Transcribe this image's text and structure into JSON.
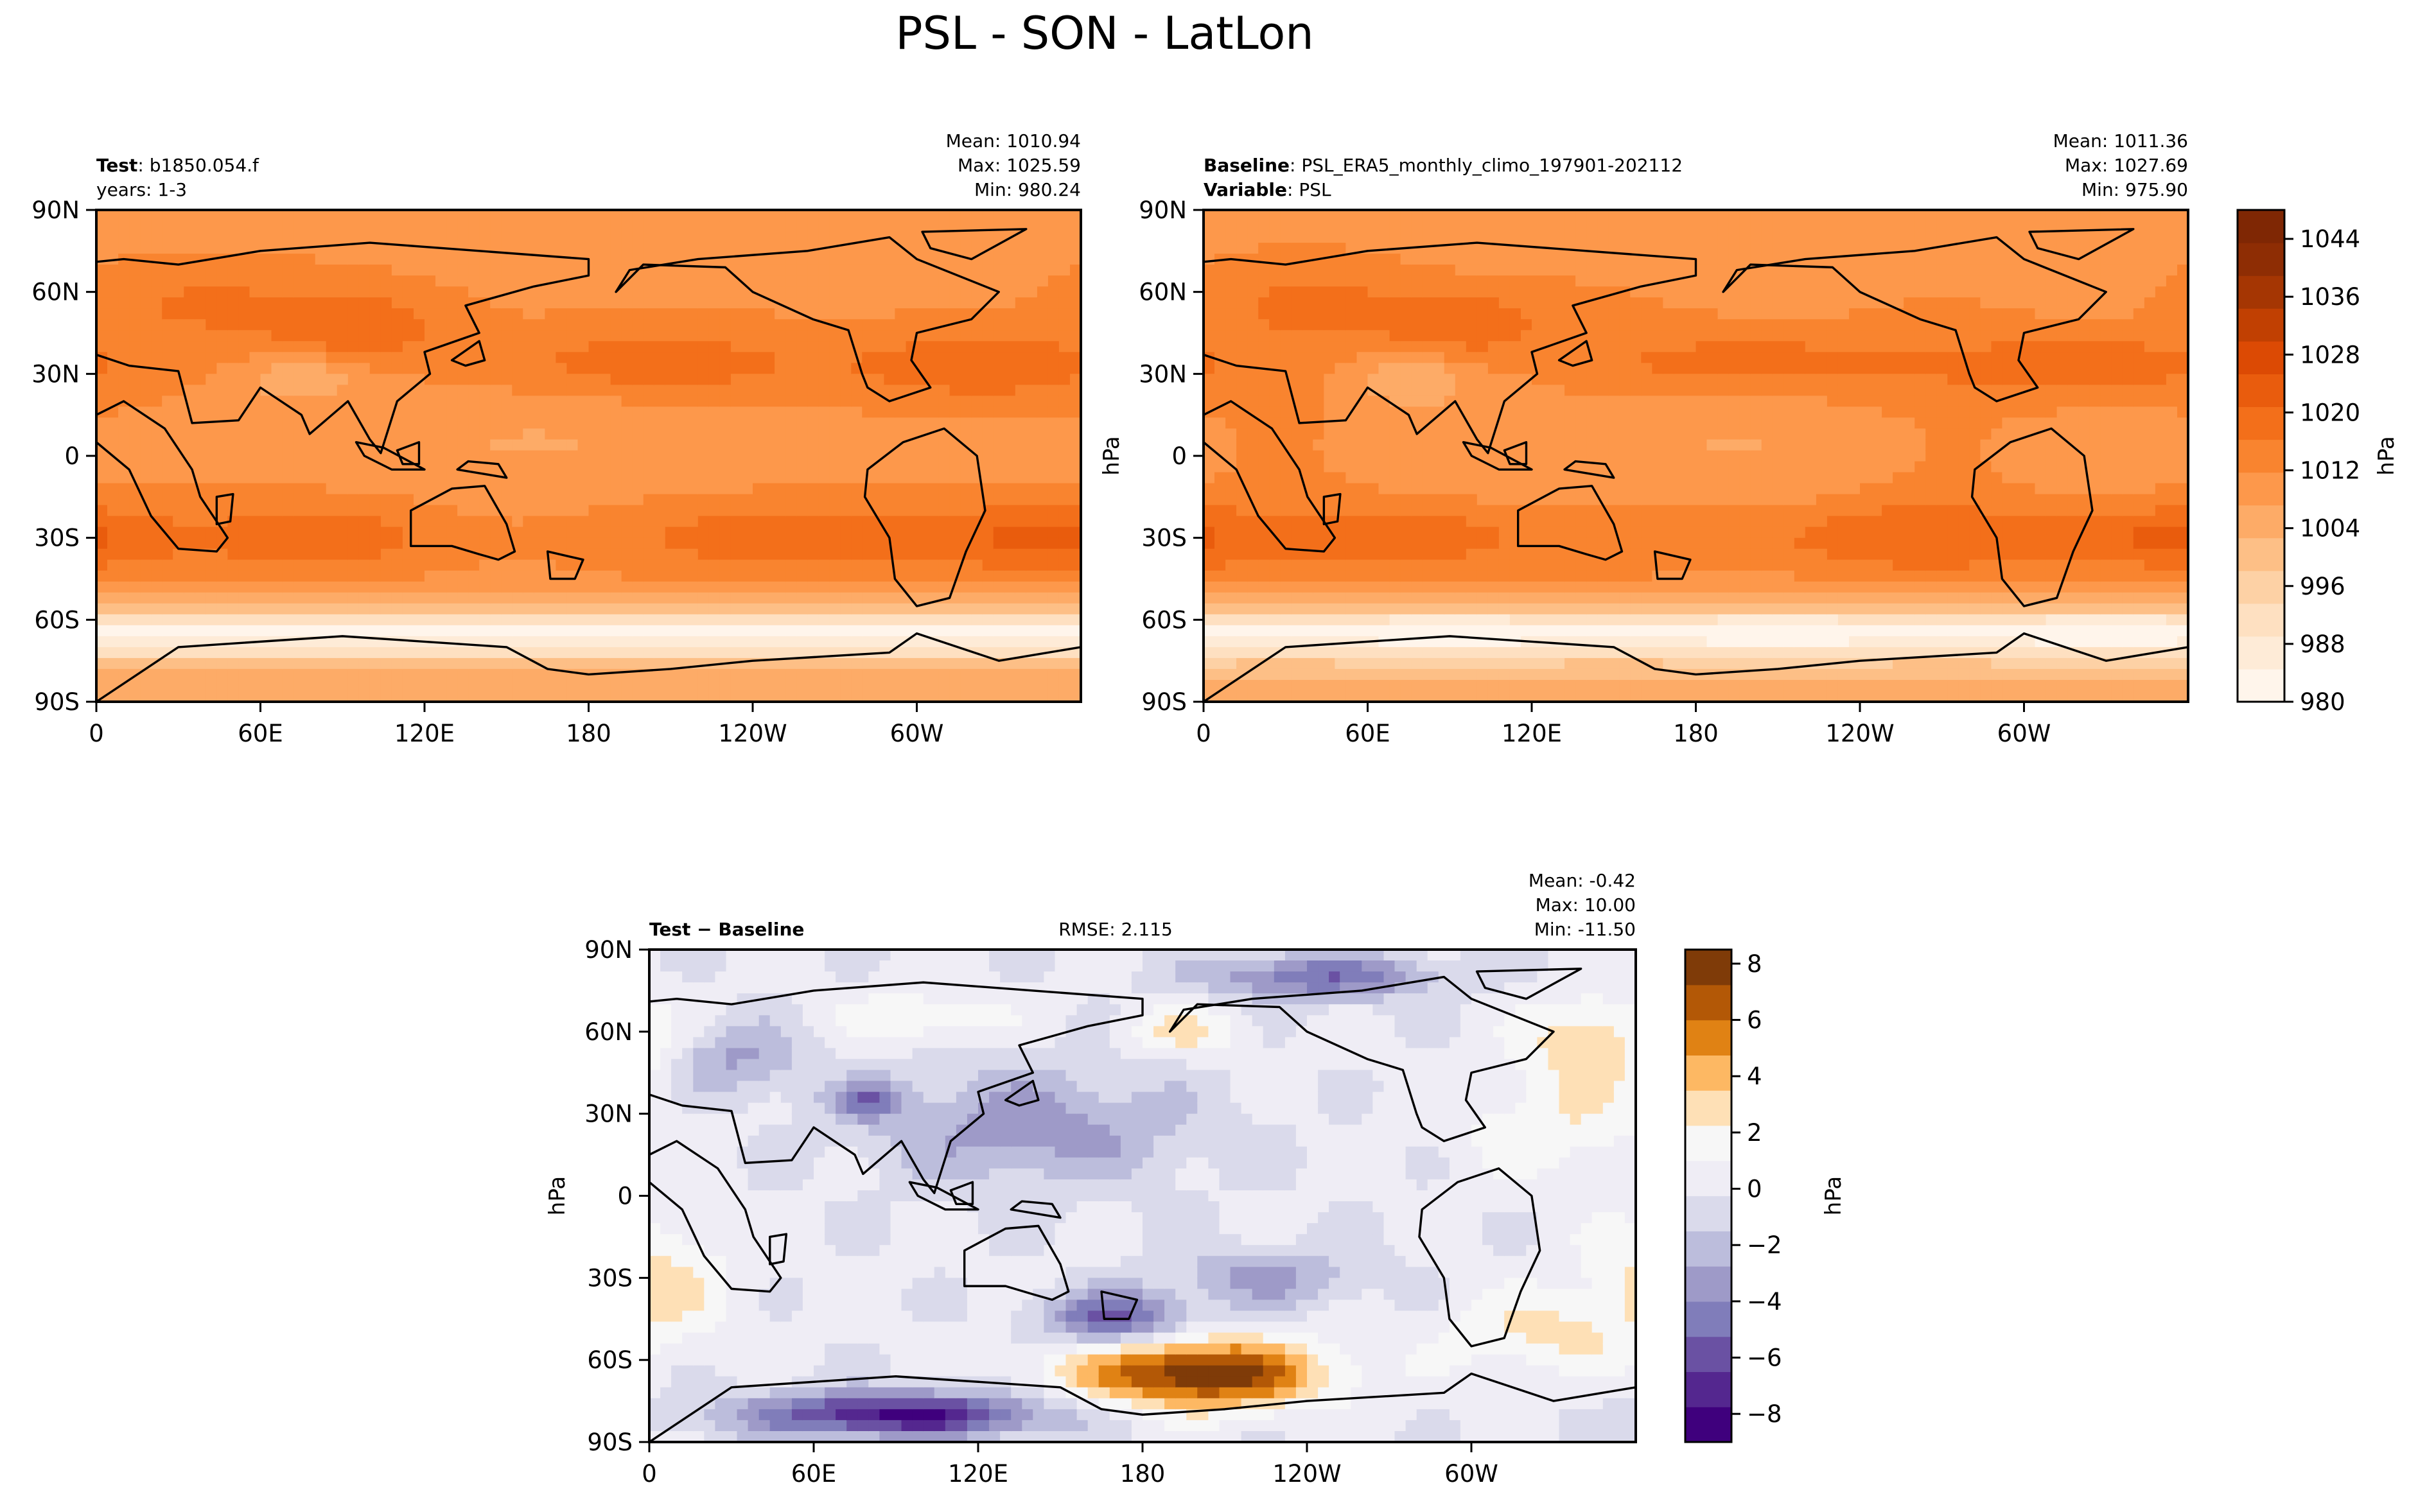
{
  "figure": {
    "title": "PSL - SON - LatLon"
  },
  "chart_data": [
    {
      "type": "heatmap",
      "panel": "test",
      "label_bold": "Test",
      "label_value": "b1850.054.f",
      "line2": "years: 1-3",
      "stats": {
        "mean": "Mean: 1010.94",
        "max": "Max: 1025.59",
        "min": "Min: 980.24"
      },
      "ylabel": "",
      "xticks": [
        "0",
        "60E",
        "120E",
        "180",
        "120W",
        "60W"
      ],
      "yticks": [
        "90N",
        "60N",
        "30N",
        "0",
        "30S",
        "60S",
        "90S"
      ],
      "xlim": [
        0,
        360
      ],
      "ylim": [
        -90,
        90
      ],
      "field": {
        "units": "hPa",
        "base": 1011,
        "features": [
          {
            "lon": 40,
            "lat": 55,
            "amp": 6,
            "w": 28,
            "h": 10
          },
          {
            "lon": 95,
            "lat": 48,
            "amp": 9,
            "w": 22,
            "h": 9
          },
          {
            "lon": 205,
            "lat": 34,
            "amp": 8,
            "w": 42,
            "h": 9
          },
          {
            "lon": 325,
            "lat": 33,
            "amp": 9,
            "w": 35,
            "h": 9
          },
          {
            "lon": 255,
            "lat": -30,
            "amp": 9,
            "w": 45,
            "h": 9
          },
          {
            "lon": 350,
            "lat": -30,
            "amp": 10,
            "w": 30,
            "h": 9
          },
          {
            "lon": 80,
            "lat": -30,
            "amp": 9,
            "w": 30,
            "h": 9
          },
          {
            "lon": 160,
            "lat": 5,
            "amp": -4,
            "w": 50,
            "h": 12
          },
          {
            "lon": 75,
            "lat": 28,
            "amp": -8,
            "w": 14,
            "h": 6
          }
        ],
        "subpolar_min": 983
      }
    },
    {
      "type": "heatmap",
      "panel": "baseline",
      "label_bold": "Baseline",
      "label_value": "PSL_ERA5_monthly_climo_197901-202112",
      "line2_bold": "Variable",
      "line2_value": "PSL",
      "stats": {
        "mean": "Mean: 1011.36",
        "max": "Max: 1027.69",
        "min": "Min: 975.90"
      },
      "ylabel": "hPa",
      "xticks": [
        "0",
        "60E",
        "120E",
        "180",
        "120W",
        "60W"
      ],
      "yticks": [
        "90N",
        "60N",
        "30N",
        "0",
        "30S",
        "60S",
        "90S"
      ],
      "xlim": [
        0,
        360
      ],
      "ylim": [
        -90,
        90
      ],
      "colorbar": {
        "label": "hPa",
        "min": 980,
        "max": 1048,
        "ticks": [
          "980",
          "988",
          "996",
          "1004",
          "1012",
          "1020",
          "1028",
          "1036",
          "1044"
        ],
        "tick_values": [
          980,
          988,
          996,
          1004,
          1012,
          1020,
          1028,
          1036,
          1044
        ],
        "colors": [
          "#fff5eb",
          "#feebd7",
          "#fee0c1",
          "#fdd1a5",
          "#fdbf86",
          "#fdab67",
          "#fd984b",
          "#f9842f",
          "#f36f1a",
          "#e95c0d",
          "#dc4a04",
          "#c14002",
          "#a53603",
          "#8e2d04",
          "#7f2704"
        ]
      }
    },
    {
      "type": "heatmap",
      "panel": "difference",
      "label_bold": "Test − Baseline",
      "rmse": "RMSE: 2.115",
      "stats": {
        "mean": "Mean: -0.42",
        "max": "Max: 10.00",
        "min": "Min: -11.50"
      },
      "ylabel": "hPa",
      "xticks": [
        "0",
        "60E",
        "120E",
        "180",
        "120W",
        "60W"
      ],
      "yticks": [
        "90N",
        "60N",
        "30N",
        "0",
        "30S",
        "60S",
        "90S"
      ],
      "xlim": [
        0,
        360
      ],
      "ylim": [
        -90,
        90
      ],
      "colorbar": {
        "label": "hPa",
        "min": -9,
        "max": 8.5,
        "ticks": [
          "−8",
          "−6",
          "−4",
          "−2",
          "0",
          "2",
          "4",
          "6",
          "8"
        ],
        "tick_values": [
          -8,
          -6,
          -4,
          -2,
          0,
          2,
          4,
          6,
          8
        ],
        "colors": [
          "#3f007d",
          "#54278f",
          "#6a51a3",
          "#807dba",
          "#9e9ac8",
          "#bcbddc",
          "#dadaeb",
          "#efedf5",
          "#f7f7f7",
          "#fee0b6",
          "#fdb863",
          "#e08214",
          "#b35806",
          "#7f3b08"
        ]
      },
      "field": {
        "features": [
          {
            "lon": 200,
            "lat": -65,
            "amp": 8.5,
            "w": 32,
            "h": 9
          },
          {
            "lon": 90,
            "lat": -80,
            "amp": -8,
            "w": 40,
            "h": 6
          },
          {
            "lon": 170,
            "lat": -45,
            "amp": -6,
            "w": 18,
            "h": 7
          },
          {
            "lon": 140,
            "lat": 25,
            "amp": -3.5,
            "w": 40,
            "h": 15
          },
          {
            "lon": 225,
            "lat": -30,
            "amp": -3,
            "w": 25,
            "h": 8
          },
          {
            "lon": 245,
            "lat": 80,
            "amp": -5,
            "w": 30,
            "h": 6
          },
          {
            "lon": 30,
            "lat": 50,
            "amp": -3,
            "w": 18,
            "h": 10
          },
          {
            "lon": 80,
            "lat": 35,
            "amp": -4,
            "w": 10,
            "h": 5
          },
          {
            "lon": 345,
            "lat": 55,
            "amp": 3.5,
            "w": 18,
            "h": 12
          },
          {
            "lon": 330,
            "lat": 25,
            "amp": 2,
            "w": 25,
            "h": 12
          },
          {
            "lon": 5,
            "lat": -30,
            "amp": 2.5,
            "w": 18,
            "h": 15
          },
          {
            "lon": 100,
            "lat": 65,
            "amp": 2.5,
            "w": 20,
            "h": 6
          },
          {
            "lon": 195,
            "lat": 60,
            "amp": 2.5,
            "w": 15,
            "h": 6
          },
          {
            "lon": 325,
            "lat": -50,
            "amp": 2.5,
            "w": 25,
            "h": 10
          }
        ]
      }
    }
  ]
}
